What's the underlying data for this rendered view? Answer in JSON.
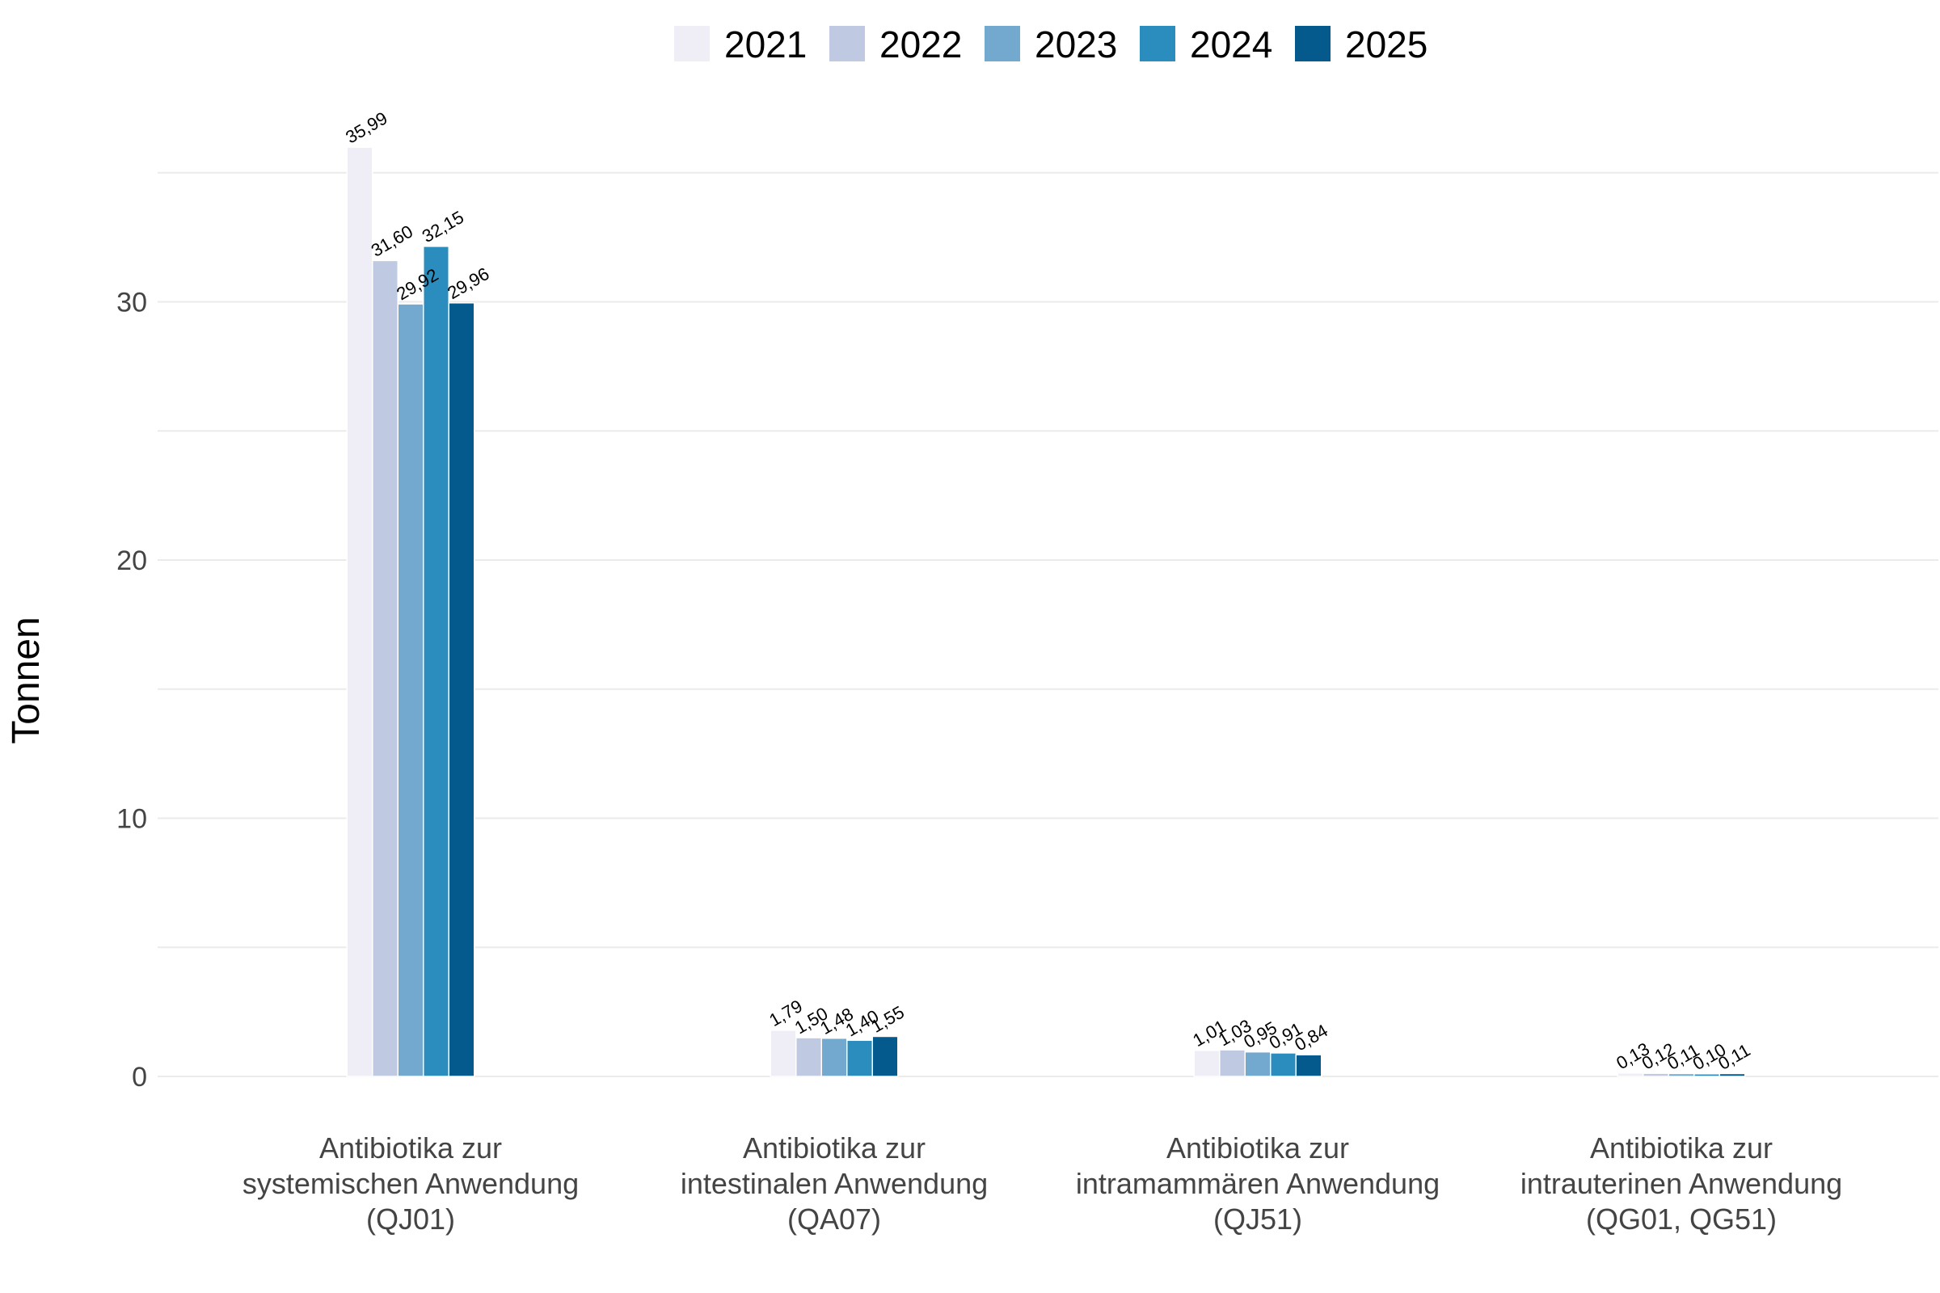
{
  "chart_data": {
    "type": "bar",
    "ylabel": "Tonnen",
    "ylim": [
      0,
      37
    ],
    "yticks": [
      0,
      10,
      20,
      30
    ],
    "grid": true,
    "legend_position": "top",
    "categories": [
      [
        "Antibiotika zur",
        "systemischen Anwendung",
        "(QJ01)"
      ],
      [
        "Antibiotika zur",
        "intestinalen Anwendung",
        "(QA07)"
      ],
      [
        "Antibiotika zur",
        "intramammären Anwendung",
        "(QJ51)"
      ],
      [
        "Antibiotika zur",
        "intrauterinen Anwendung",
        "(QG01, QG51)"
      ]
    ],
    "series": [
      {
        "name": "2021",
        "color": "#efedf5",
        "values": [
          35.99,
          1.79,
          1.01,
          0.13
        ],
        "labels": [
          "35,99",
          "1,79",
          "1,01",
          "0,13"
        ]
      },
      {
        "name": "2022",
        "color": "#bfc9e2",
        "values": [
          31.6,
          1.5,
          1.03,
          0.12
        ],
        "labels": [
          "31,60",
          "1,50",
          "1,03",
          "0,12"
        ]
      },
      {
        "name": "2023",
        "color": "#74a9cf",
        "values": [
          29.92,
          1.48,
          0.95,
          0.11
        ],
        "labels": [
          "29,92",
          "1,48",
          "0,95",
          "0,11"
        ]
      },
      {
        "name": "2024",
        "color": "#2b8cbe",
        "values": [
          32.15,
          1.4,
          0.91,
          0.1
        ],
        "labels": [
          "32,15",
          "1,40",
          "0,91",
          "0,10"
        ]
      },
      {
        "name": "2025",
        "color": "#045a8d",
        "values": [
          29.96,
          1.55,
          0.84,
          0.11
        ],
        "labels": [
          "29,96",
          "1,55",
          "0,84",
          "0,11"
        ]
      }
    ]
  }
}
